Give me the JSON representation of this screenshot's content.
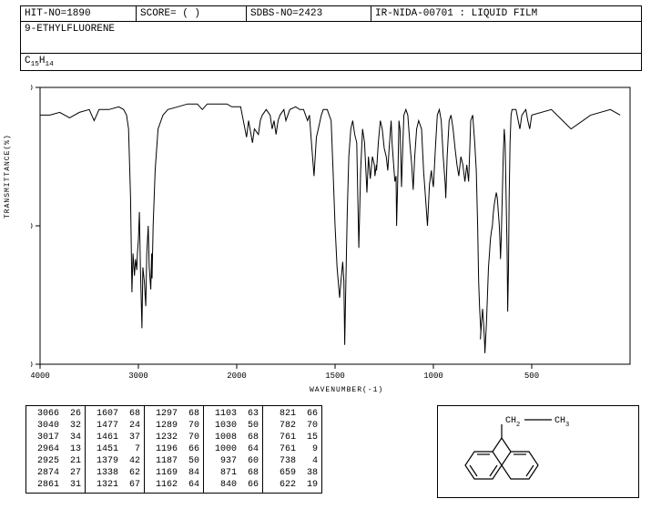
{
  "header": {
    "hit_no": "HIT-NO=1890",
    "score": "SCORE=  (  )",
    "sdbs_no": "SDBS-NO=2423",
    "ir_info": "IR-NIDA-00701 : LIQUID FILM",
    "compound": "9-ETHYLFLUORENE",
    "formula": "C15H14"
  },
  "chart": {
    "type": "line",
    "xlabel": "WAVENUMBER(-1)",
    "ylabel": "TRANSMITTANCE(%)",
    "xlim": [
      4000,
      400
    ],
    "ylim": [
      0,
      100
    ],
    "xticks": [
      4000,
      3000,
      2000,
      1500,
      1000,
      500
    ],
    "yticks": [
      0,
      50,
      100
    ],
    "line_color": "#000000",
    "background_color": "#ffffff",
    "border_color": "#000000",
    "data_points": [
      [
        4000,
        90
      ],
      [
        3900,
        90
      ],
      [
        3800,
        91
      ],
      [
        3700,
        89
      ],
      [
        3600,
        91
      ],
      [
        3500,
        92
      ],
      [
        3450,
        88
      ],
      [
        3400,
        92
      ],
      [
        3300,
        92
      ],
      [
        3200,
        93
      ],
      [
        3150,
        92
      ],
      [
        3120,
        90
      ],
      [
        3100,
        85
      ],
      [
        3080,
        60
      ],
      [
        3066,
        26
      ],
      [
        3055,
        40
      ],
      [
        3040,
        32
      ],
      [
        3030,
        38
      ],
      [
        3017,
        34
      ],
      [
        3010,
        40
      ],
      [
        3000,
        45
      ],
      [
        2990,
        55
      ],
      [
        2980,
        35
      ],
      [
        2964,
        13
      ],
      [
        2955,
        35
      ],
      [
        2940,
        30
      ],
      [
        2925,
        21
      ],
      [
        2915,
        40
      ],
      [
        2900,
        50
      ],
      [
        2890,
        35
      ],
      [
        2874,
        27
      ],
      [
        2865,
        40
      ],
      [
        2861,
        31
      ],
      [
        2850,
        50
      ],
      [
        2830,
        70
      ],
      [
        2800,
        85
      ],
      [
        2750,
        90
      ],
      [
        2700,
        92
      ],
      [
        2600,
        93
      ],
      [
        2500,
        94
      ],
      [
        2400,
        94
      ],
      [
        2350,
        92
      ],
      [
        2300,
        94
      ],
      [
        2200,
        94
      ],
      [
        2100,
        94
      ],
      [
        2050,
        93
      ],
      [
        2000,
        93
      ],
      [
        1980,
        93
      ],
      [
        1950,
        82
      ],
      [
        1940,
        88
      ],
      [
        1920,
        80
      ],
      [
        1910,
        85
      ],
      [
        1890,
        83
      ],
      [
        1880,
        88
      ],
      [
        1870,
        90
      ],
      [
        1850,
        92
      ],
      [
        1830,
        90
      ],
      [
        1820,
        85
      ],
      [
        1810,
        88
      ],
      [
        1800,
        83
      ],
      [
        1790,
        88
      ],
      [
        1780,
        90
      ],
      [
        1760,
        92
      ],
      [
        1750,
        88
      ],
      [
        1730,
        92
      ],
      [
        1700,
        93
      ],
      [
        1680,
        92
      ],
      [
        1660,
        92
      ],
      [
        1640,
        88
      ],
      [
        1630,
        90
      ],
      [
        1620,
        80
      ],
      [
        1607,
        68
      ],
      [
        1595,
        82
      ],
      [
        1585,
        85
      ],
      [
        1570,
        90
      ],
      [
        1560,
        92
      ],
      [
        1550,
        92
      ],
      [
        1540,
        92
      ],
      [
        1520,
        88
      ],
      [
        1510,
        70
      ],
      [
        1500,
        50
      ],
      [
        1490,
        35
      ],
      [
        1477,
        24
      ],
      [
        1470,
        30
      ],
      [
        1461,
        37
      ],
      [
        1455,
        30
      ],
      [
        1451,
        7
      ],
      [
        1445,
        30
      ],
      [
        1438,
        55
      ],
      [
        1430,
        75
      ],
      [
        1420,
        85
      ],
      [
        1410,
        88
      ],
      [
        1400,
        83
      ],
      [
        1390,
        80
      ],
      [
        1379,
        42
      ],
      [
        1370,
        70
      ],
      [
        1360,
        85
      ],
      [
        1350,
        80
      ],
      [
        1338,
        62
      ],
      [
        1330,
        75
      ],
      [
        1321,
        67
      ],
      [
        1310,
        75
      ],
      [
        1300,
        72
      ],
      [
        1297,
        68
      ],
      [
        1290,
        72
      ],
      [
        1289,
        70
      ],
      [
        1280,
        80
      ],
      [
        1270,
        88
      ],
      [
        1260,
        85
      ],
      [
        1250,
        78
      ],
      [
        1240,
        75
      ],
      [
        1232,
        70
      ],
      [
        1225,
        78
      ],
      [
        1215,
        88
      ],
      [
        1210,
        80
      ],
      [
        1200,
        70
      ],
      [
        1196,
        66
      ],
      [
        1190,
        68
      ],
      [
        1187,
        50
      ],
      [
        1180,
        70
      ],
      [
        1175,
        88
      ],
      [
        1170,
        85
      ],
      [
        1169,
        84
      ],
      [
        1162,
        64
      ],
      [
        1155,
        80
      ],
      [
        1150,
        90
      ],
      [
        1140,
        92
      ],
      [
        1130,
        90
      ],
      [
        1120,
        80
      ],
      [
        1110,
        72
      ],
      [
        1103,
        63
      ],
      [
        1095,
        75
      ],
      [
        1085,
        85
      ],
      [
        1075,
        88
      ],
      [
        1060,
        85
      ],
      [
        1050,
        70
      ],
      [
        1040,
        60
      ],
      [
        1030,
        50
      ],
      [
        1020,
        65
      ],
      [
        1010,
        70
      ],
      [
        1008,
        68
      ],
      [
        1000,
        64
      ],
      [
        990,
        78
      ],
      [
        980,
        90
      ],
      [
        970,
        92
      ],
      [
        960,
        88
      ],
      [
        950,
        75
      ],
      [
        940,
        65
      ],
      [
        937,
        60
      ],
      [
        930,
        75
      ],
      [
        920,
        88
      ],
      [
        910,
        90
      ],
      [
        900,
        85
      ],
      [
        890,
        78
      ],
      [
        880,
        72
      ],
      [
        871,
        68
      ],
      [
        860,
        75
      ],
      [
        850,
        72
      ],
      [
        840,
        66
      ],
      [
        830,
        72
      ],
      [
        821,
        66
      ],
      [
        815,
        78
      ],
      [
        810,
        88
      ],
      [
        800,
        90
      ],
      [
        790,
        80
      ],
      [
        782,
        70
      ],
      [
        775,
        50
      ],
      [
        770,
        30
      ],
      [
        765,
        20
      ],
      [
        761,
        15
      ],
      [
        759,
        12
      ],
      [
        761,
        9
      ],
      [
        755,
        15
      ],
      [
        750,
        20
      ],
      [
        745,
        15
      ],
      [
        740,
        8
      ],
      [
        738,
        4
      ],
      [
        735,
        8
      ],
      [
        730,
        15
      ],
      [
        725,
        25
      ],
      [
        720,
        35
      ],
      [
        715,
        40
      ],
      [
        710,
        45
      ],
      [
        705,
        48
      ],
      [
        700,
        50
      ],
      [
        695,
        55
      ],
      [
        690,
        58
      ],
      [
        685,
        60
      ],
      [
        680,
        62
      ],
      [
        675,
        60
      ],
      [
        670,
        55
      ],
      [
        665,
        50
      ],
      [
        660,
        42
      ],
      [
        659,
        38
      ],
      [
        655,
        45
      ],
      [
        650,
        60
      ],
      [
        645,
        75
      ],
      [
        640,
        85
      ],
      [
        635,
        80
      ],
      [
        630,
        60
      ],
      [
        625,
        40
      ],
      [
        622,
        19
      ],
      [
        618,
        35
      ],
      [
        615,
        60
      ],
      [
        610,
        80
      ],
      [
        605,
        90
      ],
      [
        600,
        92
      ],
      [
        580,
        92
      ],
      [
        560,
        85
      ],
      [
        550,
        90
      ],
      [
        530,
        92
      ],
      [
        520,
        88
      ],
      [
        510,
        85
      ],
      [
        500,
        90
      ],
      [
        480,
        92
      ],
      [
        460,
        85
      ],
      [
        440,
        90
      ],
      [
        420,
        92
      ],
      [
        410,
        90
      ]
    ]
  },
  "peak_table": {
    "columns": [
      [
        [
          3066,
          26
        ],
        [
          3040,
          32
        ],
        [
          3017,
          34
        ],
        [
          2964,
          13
        ],
        [
          2925,
          21
        ],
        [
          2874,
          27
        ],
        [
          2861,
          31
        ]
      ],
      [
        [
          1607,
          68
        ],
        [
          1477,
          24
        ],
        [
          1461,
          37
        ],
        [
          1451,
          7
        ],
        [
          1379,
          42
        ],
        [
          1338,
          62
        ],
        [
          1321,
          67
        ]
      ],
      [
        [
          1297,
          68
        ],
        [
          1289,
          70
        ],
        [
          1232,
          70
        ],
        [
          1196,
          66
        ],
        [
          1187,
          50
        ],
        [
          1169,
          84
        ],
        [
          1162,
          64
        ]
      ],
      [
        [
          1103,
          63
        ],
        [
          1030,
          50
        ],
        [
          1008,
          68
        ],
        [
          1000,
          64
        ],
        [
          937,
          60
        ],
        [
          871,
          68
        ],
        [
          840,
          66
        ]
      ],
      [
        [
          821,
          66
        ],
        [
          782,
          70
        ],
        [
          761,
          15
        ],
        [
          761,
          9
        ],
        [
          738,
          4
        ],
        [
          659,
          38
        ],
        [
          622,
          19
        ]
      ]
    ]
  },
  "structure": {
    "labels": {
      "ch2": "CH",
      "ch3": "CH"
    }
  }
}
